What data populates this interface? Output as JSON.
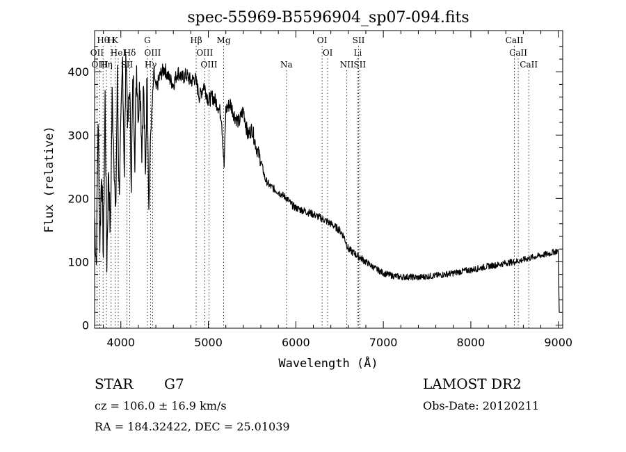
{
  "chart_data": {
    "type": "line",
    "title": "spec-55969-B5596904_sp07-094.fits",
    "xlabel": "Wavelength (Å)",
    "ylabel": "Flux (relative)",
    "xlim": [
      3700,
      9050
    ],
    "ylim": [
      -5,
      465
    ],
    "xticks": [
      4000,
      5000,
      6000,
      7000,
      8000,
      9000
    ],
    "yticks": [
      0,
      100,
      200,
      300,
      400
    ],
    "grid": false,
    "line_color": "#000000",
    "series": [
      {
        "x": [
          3700,
          3720,
          3740,
          3760,
          3780,
          3800,
          3820,
          3840,
          3860,
          3880,
          3900,
          3920,
          3940,
          3960,
          3980,
          4000,
          4020,
          4040,
          4060,
          4080,
          4100,
          4120,
          4140,
          4160,
          4180,
          4200,
          4220,
          4240,
          4260,
          4280,
          4300,
          4320,
          4340,
          4360,
          4380,
          4400,
          4450,
          4500,
          4550,
          4600,
          4650,
          4700,
          4750,
          4800,
          4850,
          4900,
          4950,
          5000,
          5050,
          5100,
          5150,
          5180,
          5200,
          5250,
          5300,
          5350,
          5400,
          5450,
          5500,
          5550,
          5600,
          5650,
          5700,
          5750,
          5800,
          5850,
          5900,
          5950,
          6000,
          6100,
          6200,
          6300,
          6400,
          6500,
          6550,
          6600,
          6700,
          6800,
          6900,
          7000,
          7100,
          7200,
          7300,
          7400,
          7500,
          7600,
          7700,
          7800,
          7900,
          8000,
          8100,
          8200,
          8300,
          8400,
          8500,
          8600,
          8700,
          8800,
          8900,
          8980,
          9000,
          9010
        ],
        "values": [
          170,
          95,
          330,
          130,
          250,
          110,
          360,
          100,
          250,
          140,
          360,
          280,
          160,
          390,
          210,
          300,
          420,
          240,
          440,
          310,
          380,
          230,
          400,
          270,
          410,
          330,
          390,
          280,
          380,
          230,
          400,
          180,
          300,
          350,
          400,
          370,
          395,
          405,
          390,
          380,
          400,
          390,
          395,
          385,
          390,
          360,
          380,
          355,
          360,
          350,
          330,
          250,
          340,
          350,
          330,
          320,
          340,
          300,
          310,
          280,
          260,
          230,
          220,
          215,
          210,
          205,
          200,
          190,
          185,
          180,
          175,
          168,
          160,
          150,
          140,
          120,
          110,
          100,
          90,
          82,
          78,
          76,
          76,
          75,
          77,
          78,
          80,
          82,
          85,
          87,
          90,
          93,
          95,
          98,
          100,
          103,
          107,
          110,
          113,
          117,
          115,
          20
        ]
      }
    ],
    "line_markers": [
      {
        "label": "Hθ",
        "x": 3797,
        "row": 1
      },
      {
        "label": "H",
        "x": 3889,
        "row": 1
      },
      {
        "label": "K",
        "x": 3934,
        "row": 1
      },
      {
        "label": "OII",
        "x": 3727,
        "row": 2
      },
      {
        "label": "HeI",
        "x": 3970,
        "row": 2
      },
      {
        "label": "Hδ",
        "x": 4102,
        "row": 2
      },
      {
        "label": "OIII",
        "x": 3760,
        "row": 3
      },
      {
        "label": "Hη",
        "x": 3835,
        "row": 3
      },
      {
        "label": "SII",
        "x": 4069,
        "row": 3
      },
      {
        "label": "G",
        "x": 4304,
        "row": 1
      },
      {
        "label": "OIII",
        "x": 4363,
        "row": 2
      },
      {
        "label": "Hγ",
        "x": 4341,
        "row": 3
      },
      {
        "label": "Hβ",
        "x": 4861,
        "row": 1
      },
      {
        "label": "Mg",
        "x": 5175,
        "row": 1
      },
      {
        "label": "OIII",
        "x": 4959,
        "row": 2
      },
      {
        "label": "OIII",
        "x": 5007,
        "row": 3
      },
      {
        "label": "Na",
        "x": 5893,
        "row": 3
      },
      {
        "label": "OI",
        "x": 6300,
        "row": 1
      },
      {
        "label": "OI",
        "x": 6364,
        "row": 2
      },
      {
        "label": "SII",
        "x": 6717,
        "row": 1
      },
      {
        "label": "Li",
        "x": 6708,
        "row": 2
      },
      {
        "label": "NII",
        "x": 6583,
        "row": 3
      },
      {
        "label": "SII",
        "x": 6731,
        "row": 3
      },
      {
        "label": "CaII",
        "x": 8498,
        "row": 1
      },
      {
        "label": "CaII",
        "x": 8542,
        "row": 2
      },
      {
        "label": "CaII",
        "x": 8662,
        "row": 3
      }
    ]
  },
  "info": {
    "object_class": "STAR",
    "subclass": "G7",
    "survey": "LAMOST DR2",
    "cz": "cz = 106.0 ± 16.9 km/s",
    "obs_date": "Obs-Date: 20120211",
    "coords": "RA = 184.32422, DEC =  25.01039"
  }
}
